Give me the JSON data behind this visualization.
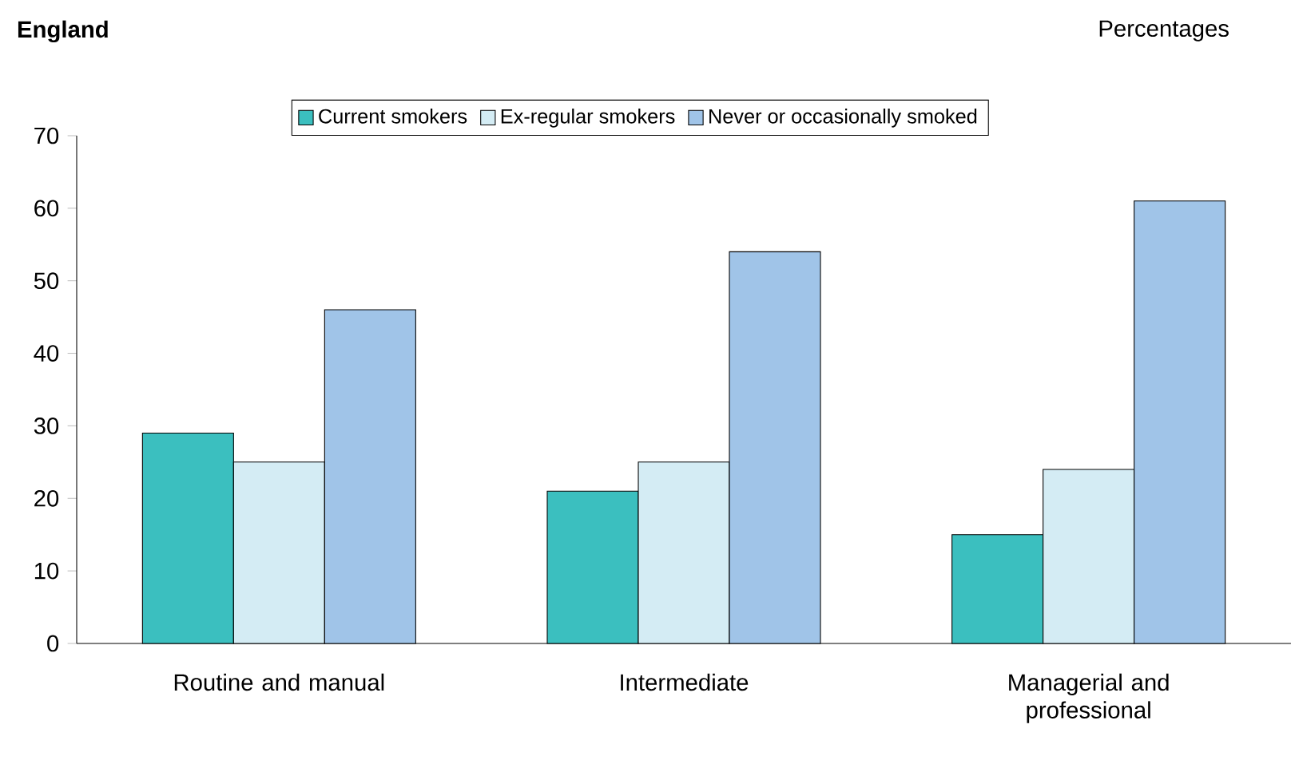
{
  "chart_data": {
    "type": "bar",
    "title": "England",
    "ylabel": "Percentages",
    "categories": [
      "Routine and manual",
      "Intermediate",
      "Managerial and professional"
    ],
    "series": [
      {
        "name": "Current smokers",
        "color": "#3bbfbf",
        "values": [
          29,
          21,
          15
        ]
      },
      {
        "name": "Ex-regular smokers",
        "color": "#d4ecf4",
        "values": [
          25,
          25,
          24
        ]
      },
      {
        "name": "Never or occasionally smoked",
        "color": "#a0c4e8",
        "values": [
          46,
          54,
          61
        ]
      }
    ],
    "ylim": [
      0,
      70
    ],
    "yticks": [
      0,
      10,
      20,
      30,
      40,
      50,
      60,
      70
    ],
    "grid": false,
    "legend": "top"
  }
}
